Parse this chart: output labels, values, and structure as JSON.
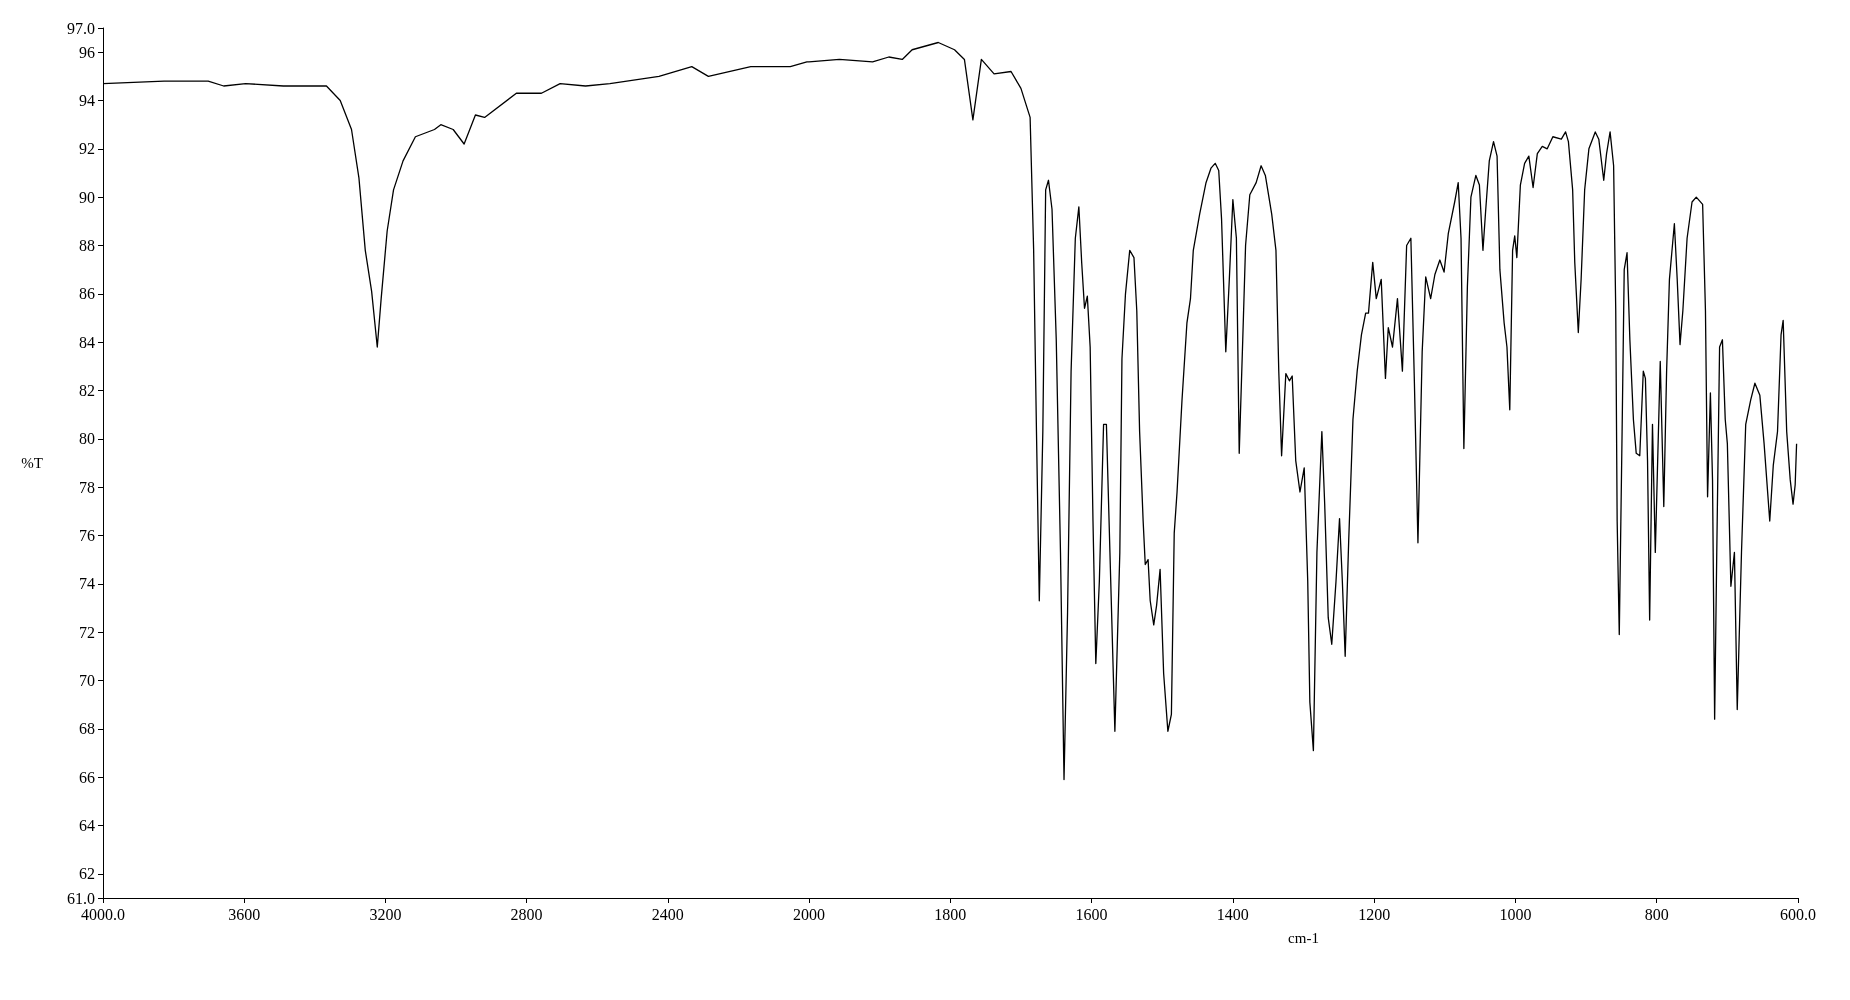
{
  "chart_data": [
    {
      "type": "line",
      "ylabel": "%T",
      "xlim": [
        4000,
        2000
      ],
      "xticks": [
        {
          "value": 4000,
          "label": "4000.0"
        },
        3600,
        3200,
        2800,
        2400,
        2000
      ],
      "ylim": [
        61,
        97
      ],
      "yticks": [
        {
          "value": 61,
          "label": "61.0"
        },
        62,
        64,
        66,
        68,
        70,
        72,
        74,
        76,
        78,
        80,
        82,
        84,
        86,
        88,
        90,
        92,
        94,
        96,
        {
          "value": 97,
          "label": "97.0"
        }
      ],
      "grid": false,
      "marker": "none",
      "line_style": "solid",
      "series": [
        {
          "color": "#000000",
          "x": [
            4000,
            3827,
            3702,
            3658,
            3596,
            3489,
            3367,
            3328,
            3296,
            3275,
            3257,
            3239,
            3223,
            3212,
            3195,
            3177,
            3150,
            3115,
            3061,
            3043,
            3008,
            2977,
            2945,
            2919,
            2829,
            2758,
            2705,
            2633,
            2564,
            2425,
            2332,
            2285,
            2165,
            2053,
            2006,
            2000
          ],
          "values": [
            94.7,
            94.8,
            94.8,
            94.6,
            94.7,
            94.6,
            94.6,
            94.0,
            92.8,
            90.8,
            87.8,
            86.1,
            83.8,
            85.8,
            88.6,
            90.3,
            91.5,
            92.5,
            92.8,
            93.0,
            92.8,
            92.2,
            93.4,
            93.3,
            94.3,
            94.3,
            94.7,
            94.6,
            94.7,
            95.0,
            95.4,
            95.0,
            95.4,
            95.4,
            95.6,
            95.6
          ]
        }
      ]
    },
    {
      "type": "line",
      "xlabel": "cm-1",
      "xlim": [
        2000,
        600
      ],
      "xticks": [
        {
          "value": 2000,
          "label": null
        },
        1800,
        1600,
        1400,
        1200,
        1000,
        800,
        {
          "value": 600,
          "label": "600.0"
        }
      ],
      "ylim": [
        61,
        97
      ],
      "tick_labels": "x",
      "grid": false,
      "marker": "none",
      "line_style": "solid",
      "series": [
        {
          "color": "#000000",
          "x": [
            2000,
            1957,
            1910,
            1887,
            1868,
            1854,
            1817,
            1794,
            1780,
            1768,
            1756,
            1738,
            1714,
            1700,
            1687,
            1682,
            1678,
            1674,
            1669,
            1665,
            1661,
            1656,
            1650,
            1644,
            1639,
            1634,
            1629,
            1623,
            1618,
            1614,
            1610,
            1606,
            1602,
            1598,
            1594,
            1589,
            1583,
            1579,
            1574,
            1567,
            1560,
            1557,
            1552,
            1546,
            1540,
            1536,
            1532,
            1527,
            1524,
            1520,
            1517,
            1512,
            1508,
            1503,
            1498,
            1492,
            1487,
            1483,
            1479,
            1472,
            1465,
            1460,
            1456,
            1447,
            1438,
            1431,
            1425,
            1420,
            1416,
            1410,
            1405,
            1400,
            1395,
            1391,
            1386,
            1382,
            1376,
            1367,
            1360,
            1354,
            1345,
            1339,
            1335,
            1331,
            1325,
            1320,
            1316,
            1311,
            1305,
            1299,
            1294,
            1291,
            1286,
            1281,
            1274,
            1270,
            1265,
            1260,
            1254,
            1249,
            1245,
            1241,
            1236,
            1230,
            1224,
            1218,
            1212,
            1208,
            1202,
            1197,
            1190,
            1184,
            1180,
            1174,
            1167,
            1160,
            1154,
            1148,
            1143,
            1138,
            1132,
            1127,
            1120,
            1114,
            1107,
            1101,
            1095,
            1086,
            1081,
            1077,
            1073,
            1068,
            1063,
            1056,
            1051,
            1046,
            1042,
            1037,
            1031,
            1026,
            1022,
            1016,
            1012,
            1008,
            1004,
            1001,
            998,
            993,
            987,
            981,
            975,
            969,
            962,
            955,
            947,
            935,
            929,
            925,
            919,
            916,
            911,
            907,
            902,
            896,
            887,
            882,
            875,
            871,
            866,
            861,
            858,
            856,
            853,
            849,
            846,
            842,
            838,
            833,
            829,
            824,
            819,
            816,
            813,
            810,
            806,
            802,
            795,
            790,
            786,
            782,
            775,
            771,
            767,
            763,
            757,
            750,
            744,
            735,
            731,
            728,
            724,
            721,
            718,
            715,
            711,
            707,
            703,
            700,
            695,
            690,
            686,
            680,
            674,
            667,
            661,
            654,
            648,
            640,
            635,
            629,
            624,
            621,
            616,
            611,
            607,
            604,
            602
          ],
          "values": [
            95.6,
            95.7,
            95.6,
            95.8,
            95.7,
            96.1,
            96.4,
            96.1,
            95.7,
            93.2,
            95.7,
            95.1,
            95.2,
            94.5,
            93.3,
            87.8,
            80.3,
            73.3,
            80.3,
            90.3,
            90.7,
            89.5,
            84.1,
            75.3,
            65.9,
            72.8,
            82.8,
            88.3,
            89.6,
            87.3,
            85.4,
            85.9,
            83.8,
            76.6,
            70.7,
            74.1,
            80.6,
            80.6,
            75.3,
            67.9,
            75.3,
            83.3,
            86.0,
            87.8,
            87.5,
            85.3,
            80.3,
            76.6,
            74.8,
            75.0,
            73.3,
            72.3,
            73.1,
            74.6,
            70.3,
            67.9,
            68.6,
            76.1,
            77.8,
            81.6,
            84.8,
            85.8,
            87.8,
            89.3,
            90.6,
            91.2,
            91.4,
            91.1,
            89.1,
            83.6,
            86.6,
            89.9,
            88.3,
            79.4,
            84.1,
            88.0,
            90.1,
            90.6,
            91.3,
            90.9,
            89.3,
            87.8,
            82.8,
            79.3,
            82.7,
            82.4,
            82.6,
            79.1,
            77.8,
            78.8,
            74.1,
            69.1,
            67.1,
            75.3,
            80.3,
            77.3,
            72.6,
            71.5,
            74.1,
            76.7,
            74.1,
            71.0,
            75.8,
            80.8,
            82.8,
            84.3,
            85.2,
            85.2,
            87.3,
            85.8,
            86.6,
            82.5,
            84.6,
            83.8,
            85.8,
            82.8,
            88.0,
            88.3,
            82.3,
            75.7,
            83.6,
            86.7,
            85.8,
            86.8,
            87.4,
            86.9,
            88.5,
            89.8,
            90.6,
            88.3,
            79.6,
            86.3,
            90.0,
            90.9,
            90.5,
            87.8,
            89.5,
            91.5,
            92.3,
            91.7,
            87.0,
            84.8,
            83.8,
            81.2,
            87.8,
            88.4,
            87.5,
            90.5,
            91.4,
            91.7,
            90.4,
            91.8,
            92.1,
            92.0,
            92.5,
            92.4,
            92.7,
            92.3,
            90.3,
            87.3,
            84.4,
            86.6,
            90.3,
            92.0,
            92.7,
            92.4,
            90.7,
            91.8,
            92.7,
            91.3,
            85.3,
            76.6,
            71.9,
            80.3,
            87.0,
            87.7,
            84.1,
            80.8,
            79.4,
            79.3,
            82.8,
            82.5,
            79.1,
            72.5,
            80.6,
            75.3,
            83.2,
            77.2,
            82.8,
            86.6,
            88.9,
            86.6,
            83.9,
            85.3,
            88.3,
            89.8,
            90.0,
            89.7,
            85.3,
            77.6,
            81.9,
            78.3,
            68.4,
            75.3,
            83.8,
            84.1,
            80.8,
            79.8,
            73.9,
            75.3,
            68.8,
            75.3,
            80.6,
            81.6,
            82.3,
            81.8,
            79.8,
            76.6,
            78.9,
            80.3,
            84.3,
            84.9,
            80.3,
            78.3,
            77.3,
            78.1,
            79.8
          ]
        }
      ]
    }
  ]
}
